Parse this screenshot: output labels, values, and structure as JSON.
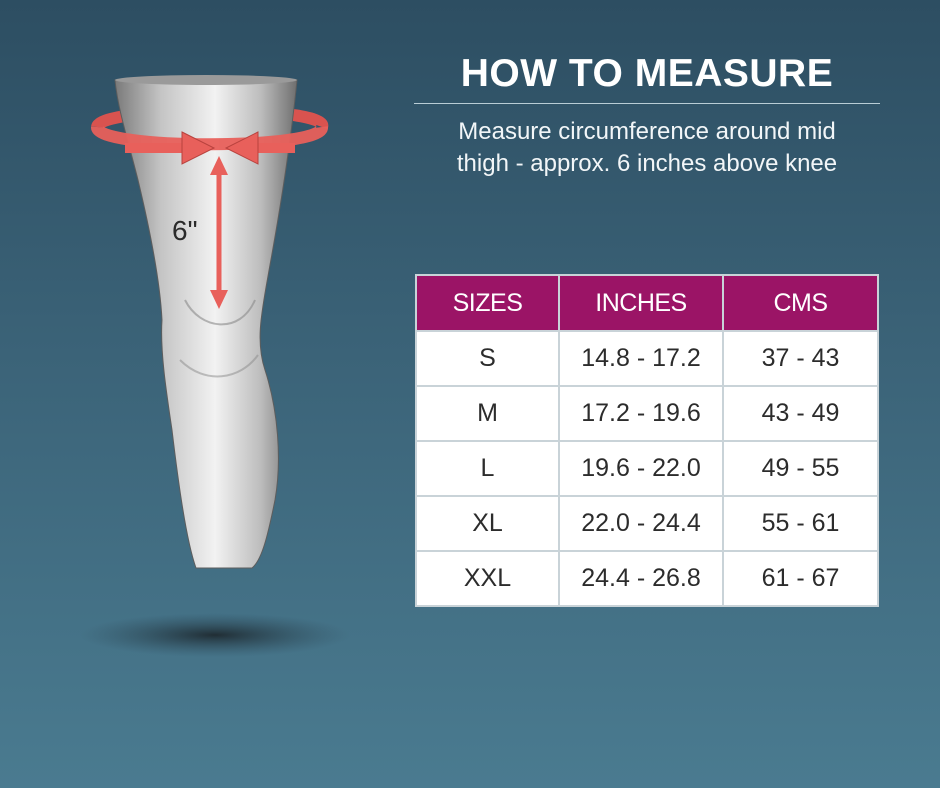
{
  "header": {
    "title": "HOW TO MEASURE",
    "subtitle_line1": "Measure circumference around mid",
    "subtitle_line2": "thigh - approx. 6 inches above knee"
  },
  "illustration": {
    "measurement_label": "6\"",
    "arrow_color": "#e8605b",
    "leg_color": "#cfcfcf"
  },
  "size_table": {
    "header_color": "#9b1466",
    "columns": [
      "SIZES",
      "INCHES",
      "CMS"
    ],
    "rows": [
      {
        "size": "S",
        "inches": "14.8 - 17.2",
        "cms": "37 - 43"
      },
      {
        "size": "M",
        "inches": "17.2 - 19.6",
        "cms": "43 - 49"
      },
      {
        "size": "L",
        "inches": "19.6 - 22.0",
        "cms": "49 - 55"
      },
      {
        "size": "XL",
        "inches": "22.0 - 24.4",
        "cms": "55 - 61"
      },
      {
        "size": "XXL",
        "inches": "24.4 - 26.8",
        "cms": "61 - 67"
      }
    ]
  }
}
